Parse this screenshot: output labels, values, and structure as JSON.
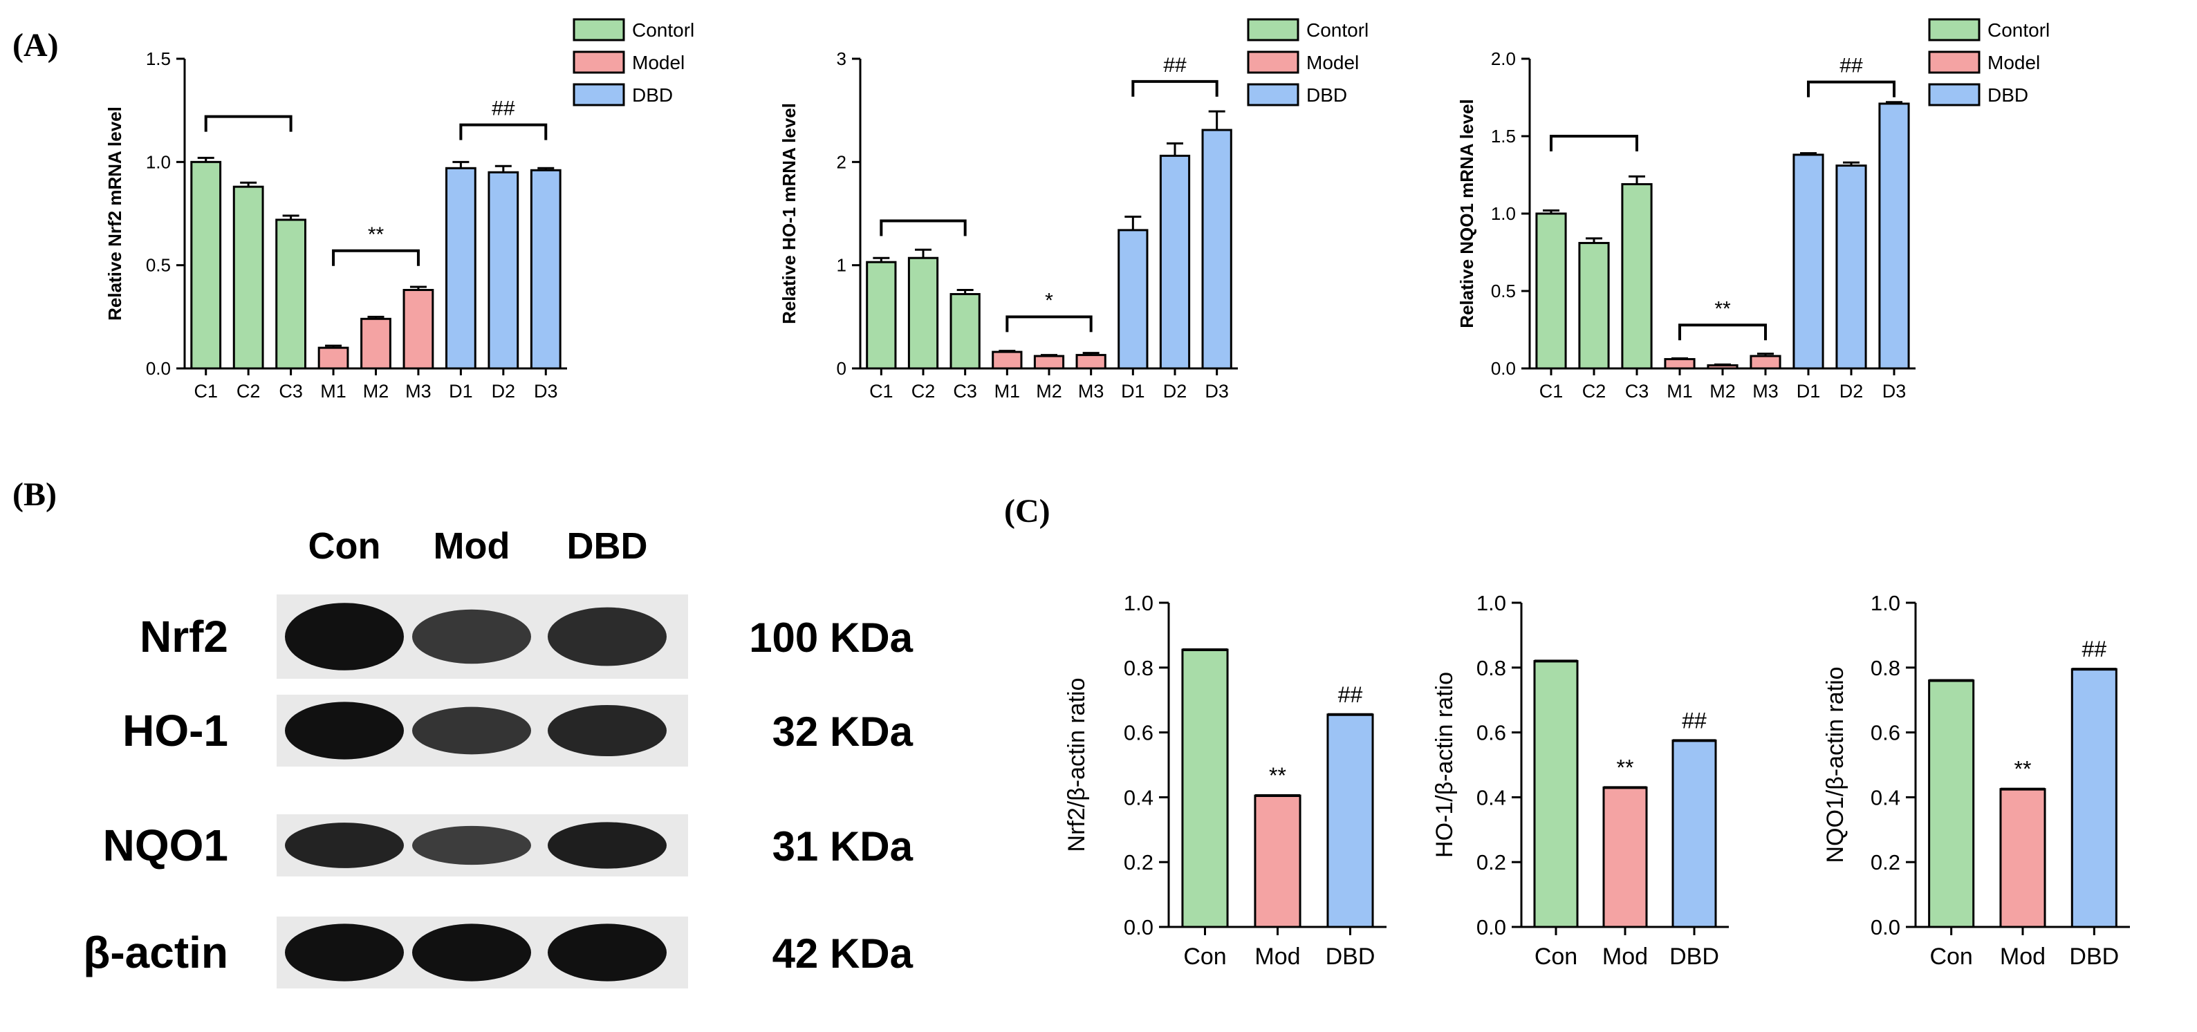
{
  "panel_labels": {
    "a": "(A)",
    "b": "(B)",
    "c": "(C)"
  },
  "colors": {
    "control": "#a8dca8",
    "model": "#f4a3a3",
    "dbd": "#9cc3f5",
    "axis": "#000000"
  },
  "chart_data": [
    {
      "id": "nrf2-mrna",
      "type": "bar",
      "ylabel": "Relative Nrf2 mRNA level",
      "categories": [
        "C1",
        "C2",
        "C3",
        "M1",
        "M2",
        "M3",
        "D1",
        "D2",
        "D3"
      ],
      "values": [
        1.0,
        0.88,
        0.72,
        0.1,
        0.24,
        0.38,
        0.97,
        0.95,
        0.96
      ],
      "errors": [
        0.02,
        0.02,
        0.02,
        0.01,
        0.01,
        0.015,
        0.03,
        0.03,
        0.01
      ],
      "groups": [
        "control",
        "control",
        "control",
        "model",
        "model",
        "model",
        "dbd",
        "dbd",
        "dbd"
      ],
      "ylim": [
        0,
        1.5
      ],
      "yticks": [
        "0.0",
        "0.5",
        "1.0",
        "1.5"
      ],
      "tickvals": [
        0,
        0.5,
        1.0,
        1.5
      ],
      "legend": [
        "Contorl",
        "Model",
        "DBD"
      ],
      "brackets": [
        {
          "from": 0,
          "to": 2,
          "y": 1.22,
          "label": ""
        },
        {
          "from": 3,
          "to": 5,
          "y": 0.57,
          "label": "**"
        },
        {
          "from": 6,
          "to": 8,
          "y": 1.18,
          "label": "##"
        }
      ]
    },
    {
      "id": "ho1-mrna",
      "type": "bar",
      "ylabel": "Relative HO-1 mRNA level",
      "categories": [
        "C1",
        "C2",
        "C3",
        "M1",
        "M2",
        "M3",
        "D1",
        "D2",
        "D3"
      ],
      "values": [
        1.03,
        1.07,
        0.72,
        0.16,
        0.12,
        0.13,
        1.34,
        2.06,
        2.31
      ],
      "errors": [
        0.04,
        0.08,
        0.04,
        0.01,
        0.01,
        0.02,
        0.13,
        0.12,
        0.18
      ],
      "groups": [
        "control",
        "control",
        "control",
        "model",
        "model",
        "model",
        "dbd",
        "dbd",
        "dbd"
      ],
      "ylim": [
        0,
        3
      ],
      "yticks": [
        "0",
        "1",
        "2",
        "3"
      ],
      "tickvals": [
        0,
        1,
        2,
        3
      ],
      "legend": [
        "Contorl",
        "Model",
        "DBD"
      ],
      "brackets": [
        {
          "from": 0,
          "to": 2,
          "y": 1.43,
          "label": ""
        },
        {
          "from": 3,
          "to": 5,
          "y": 0.5,
          "label": "*"
        },
        {
          "from": 6,
          "to": 8,
          "y": 2.78,
          "label": "##"
        }
      ]
    },
    {
      "id": "nqo1-mrna",
      "type": "bar",
      "ylabel": "Relative NQO1 mRNA level",
      "categories": [
        "C1",
        "C2",
        "C3",
        "M1",
        "M2",
        "M3",
        "D1",
        "D2",
        "D3"
      ],
      "values": [
        1.0,
        0.81,
        1.19,
        0.06,
        0.02,
        0.08,
        1.38,
        1.31,
        1.71
      ],
      "errors": [
        0.02,
        0.03,
        0.05,
        0.005,
        0.005,
        0.015,
        0.01,
        0.02,
        0.01
      ],
      "groups": [
        "control",
        "control",
        "control",
        "model",
        "model",
        "model",
        "dbd",
        "dbd",
        "dbd"
      ],
      "ylim": [
        0,
        2.0
      ],
      "yticks": [
        "0.0",
        "0.5",
        "1.0",
        "1.5",
        "2.0"
      ],
      "tickvals": [
        0,
        0.5,
        1.0,
        1.5,
        2.0
      ],
      "legend": [
        "Contorl",
        "Model",
        "DBD"
      ],
      "brackets": [
        {
          "from": 0,
          "to": 2,
          "y": 1.5,
          "label": ""
        },
        {
          "from": 3,
          "to": 5,
          "y": 0.28,
          "label": "**"
        },
        {
          "from": 6,
          "to": 8,
          "y": 1.85,
          "label": "##"
        }
      ]
    },
    {
      "id": "nrf2-ratio",
      "type": "bar",
      "ylabel": "Nrf2/β-actin ratio",
      "categories": [
        "Con",
        "Mod",
        "DBD"
      ],
      "values": [
        0.855,
        0.405,
        0.655
      ],
      "groups": [
        "control",
        "model",
        "dbd"
      ],
      "ylim": [
        0,
        1.0
      ],
      "yticks": [
        "0.0",
        "0.2",
        "0.4",
        "0.6",
        "0.8",
        "1.0"
      ],
      "tickvals": [
        0,
        0.2,
        0.4,
        0.6,
        0.8,
        1.0
      ],
      "annotations": [
        "",
        "**",
        "##"
      ]
    },
    {
      "id": "ho1-ratio",
      "type": "bar",
      "ylabel": "HO-1/β-actin ratio",
      "categories": [
        "Con",
        "Mod",
        "DBD"
      ],
      "values": [
        0.82,
        0.43,
        0.575
      ],
      "groups": [
        "control",
        "model",
        "dbd"
      ],
      "ylim": [
        0,
        1.0
      ],
      "yticks": [
        "0.0",
        "0.2",
        "0.4",
        "0.6",
        "0.8",
        "1.0"
      ],
      "tickvals": [
        0,
        0.2,
        0.4,
        0.6,
        0.8,
        1.0
      ],
      "annotations": [
        "",
        "**",
        "##"
      ]
    },
    {
      "id": "nqo1-ratio",
      "type": "bar",
      "ylabel": "NQO1/β-actin ratio",
      "categories": [
        "Con",
        "Mod",
        "DBD"
      ],
      "values": [
        0.76,
        0.425,
        0.795
      ],
      "groups": [
        "control",
        "model",
        "dbd"
      ],
      "ylim": [
        0,
        1.0
      ],
      "yticks": [
        "0.0",
        "0.2",
        "0.4",
        "0.6",
        "0.8",
        "1.0"
      ],
      "tickvals": [
        0,
        0.2,
        0.4,
        0.6,
        0.8,
        1.0
      ],
      "annotations": [
        "",
        "**",
        "##"
      ]
    }
  ],
  "western_blot": {
    "lane_labels": [
      "Con",
      "Mod",
      "DBD"
    ],
    "rows": [
      {
        "protein": "Nrf2",
        "size": "100 KDa",
        "intensity": [
          1.0,
          0.55,
          0.7
        ]
      },
      {
        "protein": "HO-1",
        "size": "32 KDa",
        "intensity": [
          1.0,
          0.6,
          0.75
        ]
      },
      {
        "protein": "NQO1",
        "size": "31 KDa",
        "intensity": [
          0.8,
          0.5,
          0.85
        ]
      },
      {
        "protein": "β-actin",
        "size": "42 KDa",
        "intensity": [
          1.0,
          1.0,
          1.0
        ]
      }
    ]
  }
}
